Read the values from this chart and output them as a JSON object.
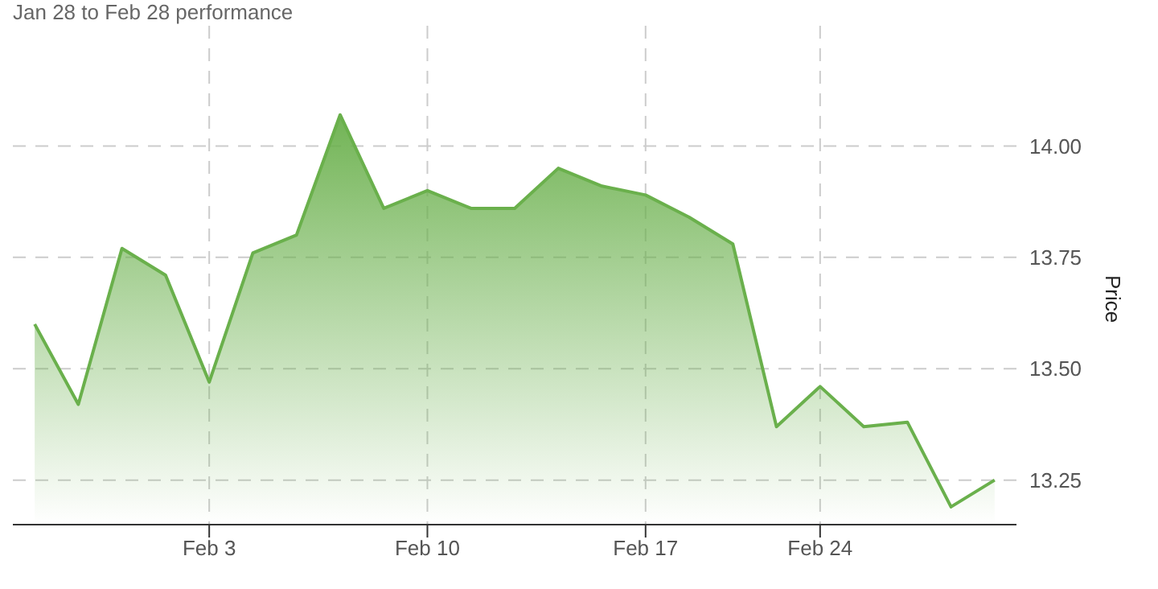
{
  "chart_data": {
    "type": "area",
    "title": "Jan 28 to Feb 28 performance",
    "ylabel": "Price",
    "categories": [
      null,
      null,
      null,
      null,
      "Feb 3",
      null,
      null,
      null,
      null,
      "Feb 10",
      null,
      null,
      null,
      null,
      "Feb 17",
      null,
      null,
      null,
      "Feb 24",
      null,
      null,
      null,
      null
    ],
    "series": [
      {
        "color": "#6ab04c",
        "values": [
          13.6,
          13.42,
          13.77,
          13.71,
          13.47,
          13.76,
          13.8,
          14.07,
          13.86,
          13.9,
          13.86,
          13.86,
          13.95,
          13.91,
          13.89,
          13.84,
          13.78,
          13.37,
          13.46,
          13.37,
          13.38,
          13.19,
          13.25
        ]
      }
    ],
    "ylim": [
      13.15,
      14.27
    ],
    "yticks": [
      {
        "value": 13.25,
        "label": "13.25"
      },
      {
        "value": 13.5,
        "label": "13.50"
      },
      {
        "value": 13.75,
        "label": "13.75"
      },
      {
        "value": 14,
        "label": "14.00"
      }
    ],
    "grid": true
  }
}
